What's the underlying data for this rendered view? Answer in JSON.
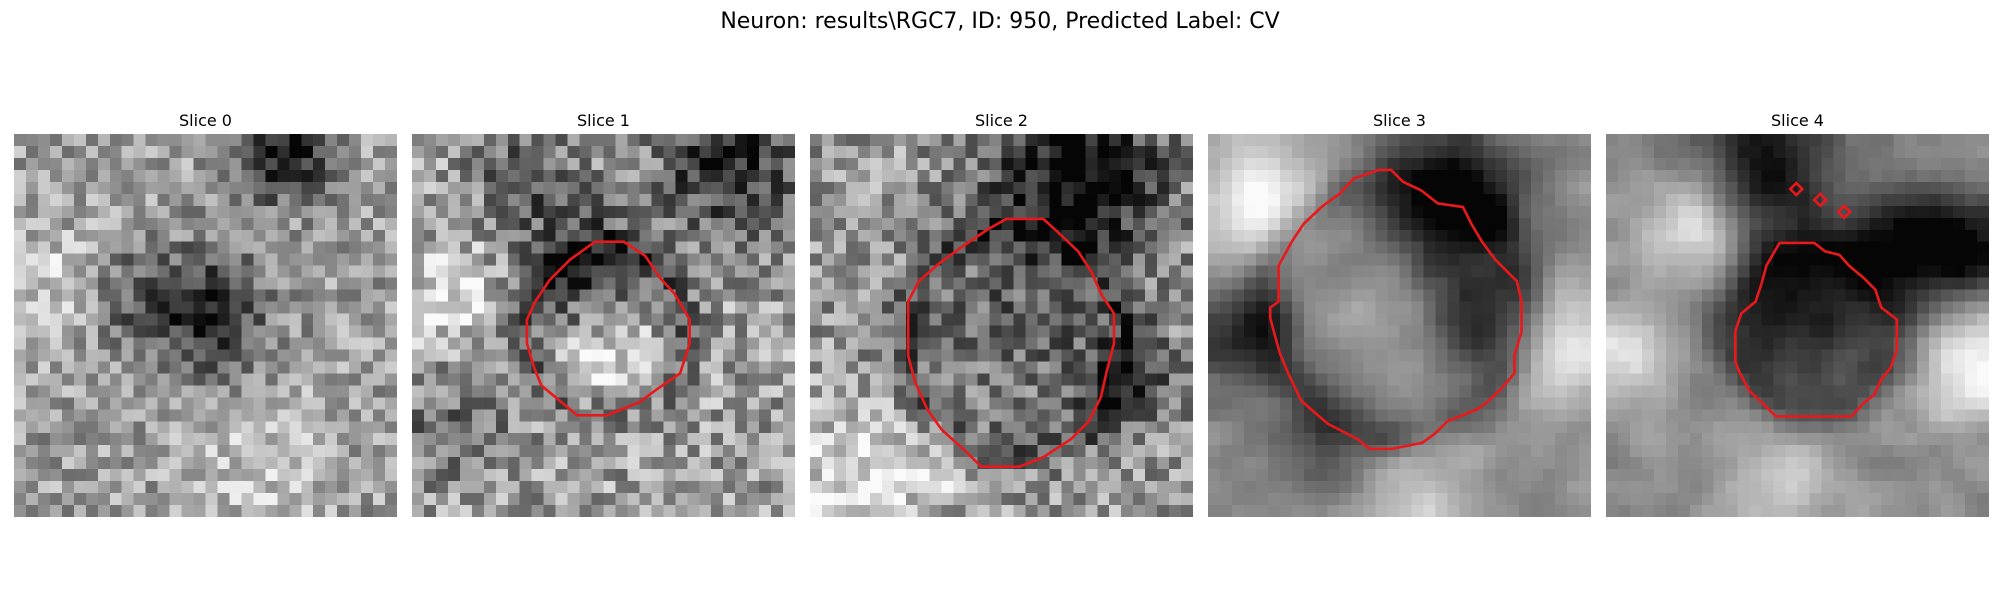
{
  "figure": {
    "title": "Neuron: results\\RGC7, ID: 950, Predicted Label: CV"
  },
  "panels": [
    {
      "title": "Slice 0"
    },
    {
      "title": "Slice 1"
    },
    {
      "title": "Slice 2"
    },
    {
      "title": "Slice 3"
    },
    {
      "title": "Slice 4"
    }
  ],
  "colors": {
    "contour": "#e8191c",
    "background": "#ffffff"
  }
}
